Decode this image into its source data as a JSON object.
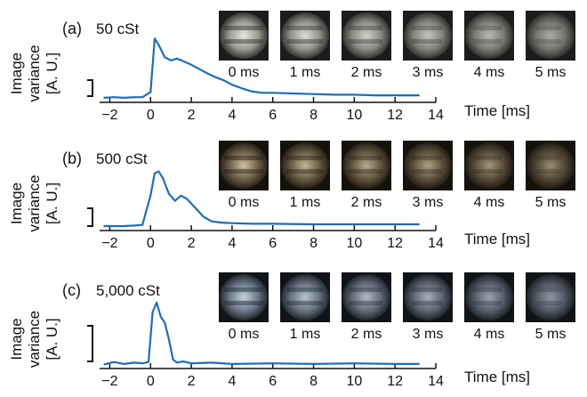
{
  "shared": {
    "xlabel": "Time [ms]",
    "ylabel_line1": "Image",
    "ylabel_line2": "variance",
    "ylabel_line3": "[A. U.]"
  },
  "colors": {
    "line": "#1f6db5",
    "axis": "#111111"
  },
  "chart_data": [
    {
      "type": "line",
      "panel_label": "(a)",
      "title": "50 cSt",
      "xlabel": "Time [ms]",
      "ylabel": "Image variance [A. U.]",
      "xlim": [
        -2.5,
        14
      ],
      "ylim": [
        0,
        1
      ],
      "xticks": [
        -2,
        0,
        2,
        4,
        6,
        8,
        10,
        12,
        14
      ],
      "xtick_labels": [
        "−2",
        "0",
        "2",
        "4",
        "6",
        "8",
        "10",
        "12",
        "14"
      ],
      "frames": [
        "0 ms",
        "1 ms",
        "2 ms",
        "3 ms",
        "4 ms",
        "5 ms"
      ],
      "frame_palette": "gray",
      "series": [
        {
          "x": [
            -2.3,
            -1.8,
            -1.3,
            -0.8,
            -0.4,
            0.0,
            0.2,
            0.4,
            0.7,
            1.0,
            1.3,
            1.6,
            2.0,
            2.4,
            2.8,
            3.2,
            3.6,
            4.0,
            4.5,
            5.0,
            5.5,
            6.0,
            7.0,
            8.0,
            9.0,
            10.0,
            11.0,
            12.0,
            12.8,
            13.2
          ],
          "y": [
            0.03,
            0.04,
            0.03,
            0.04,
            0.04,
            0.12,
            0.98,
            0.88,
            0.68,
            0.63,
            0.66,
            0.62,
            0.56,
            0.49,
            0.42,
            0.36,
            0.31,
            0.24,
            0.18,
            0.13,
            0.11,
            0.11,
            0.1,
            0.09,
            0.08,
            0.08,
            0.07,
            0.07,
            0.07,
            0.07
          ]
        }
      ]
    },
    {
      "type": "line",
      "panel_label": "(b)",
      "title": "500 cSt",
      "xlabel": "Time [ms]",
      "ylabel": "Image variance [A. U.]",
      "xlim": [
        -2.5,
        14
      ],
      "ylim": [
        0,
        1
      ],
      "xticks": [
        -2,
        0,
        2,
        4,
        6,
        8,
        10,
        12,
        14
      ],
      "xtick_labels": [
        "−2",
        "0",
        "2",
        "4",
        "6",
        "8",
        "10",
        "12",
        "14"
      ],
      "frames": [
        "0 ms",
        "1 ms",
        "2 ms",
        "3 ms",
        "4 ms",
        "5 ms"
      ],
      "frame_palette": "sepia",
      "series": [
        {
          "x": [
            -2.3,
            -1.8,
            -1.3,
            -0.8,
            -0.4,
            0.0,
            0.2,
            0.4,
            0.6,
            0.9,
            1.2,
            1.5,
            1.8,
            2.2,
            2.6,
            3.0,
            3.5,
            4.0,
            5.0,
            6.0,
            8.0,
            10.0,
            12.0,
            13.2
          ],
          "y": [
            0.03,
            0.03,
            0.03,
            0.04,
            0.05,
            0.55,
            0.93,
            0.96,
            0.85,
            0.58,
            0.46,
            0.55,
            0.49,
            0.34,
            0.19,
            0.11,
            0.09,
            0.08,
            0.07,
            0.07,
            0.06,
            0.06,
            0.06,
            0.06
          ]
        }
      ]
    },
    {
      "type": "line",
      "panel_label": "(c)",
      "title": "5,000 cSt",
      "xlabel": "Time [ms]",
      "ylabel": "Image variance [A. U.]",
      "xlim": [
        -2.5,
        14
      ],
      "ylim": [
        0,
        1
      ],
      "xticks": [
        -2,
        0,
        2,
        4,
        6,
        8,
        10,
        12,
        14
      ],
      "xtick_labels": [
        "−2",
        "0",
        "2",
        "4",
        "6",
        "8",
        "10",
        "12",
        "14"
      ],
      "frames": [
        "0 ms",
        "1 ms",
        "2 ms",
        "3 ms",
        "4 ms",
        "5 ms"
      ],
      "frame_palette": "blue",
      "series": [
        {
          "x": [
            -2.3,
            -1.8,
            -1.3,
            -0.8,
            -0.4,
            -0.1,
            0.1,
            0.3,
            0.5,
            0.7,
            0.9,
            1.1,
            1.3,
            1.6,
            2.0,
            3.0,
            4.0,
            6.0,
            8.0,
            10.0,
            12.0,
            13.2
          ],
          "y": [
            0.02,
            0.06,
            0.03,
            0.05,
            0.04,
            0.06,
            0.85,
            1.0,
            0.78,
            0.68,
            0.42,
            0.1,
            0.05,
            0.07,
            0.04,
            0.05,
            0.03,
            0.04,
            0.03,
            0.04,
            0.03,
            0.03
          ]
        }
      ]
    }
  ]
}
